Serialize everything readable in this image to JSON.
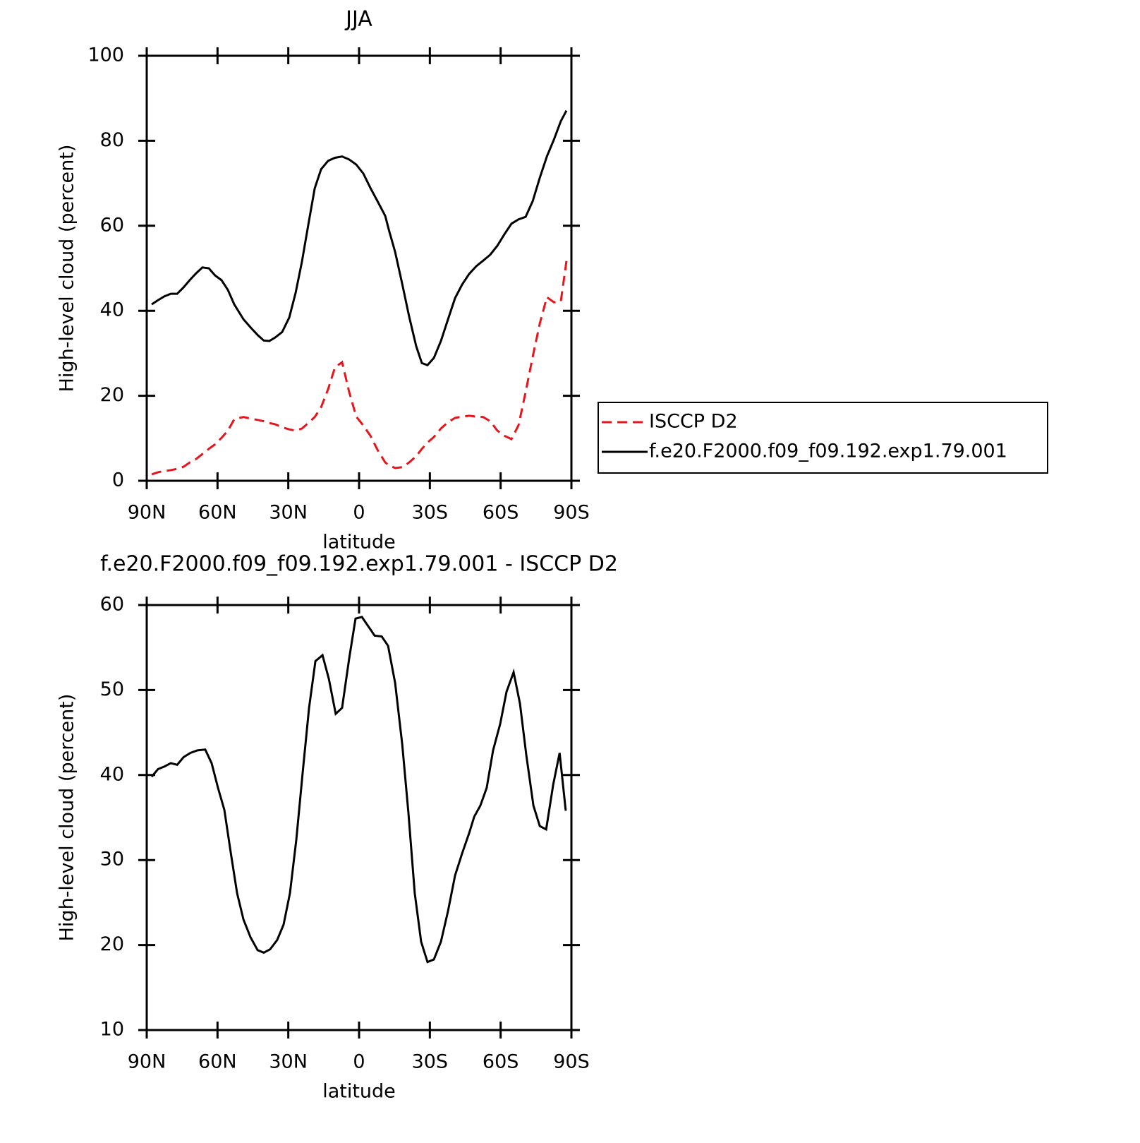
{
  "chart_data": [
    {
      "type": "line",
      "title": "JJA",
      "xlabel": "latitude",
      "ylabel": "High-level cloud (percent)",
      "xlim": [
        90,
        -90
      ],
      "ylim": [
        0,
        100
      ],
      "xticks": [
        {
          "value": 90,
          "label": "90N"
        },
        {
          "value": 60,
          "label": "60N"
        },
        {
          "value": 30,
          "label": "30N"
        },
        0,
        {
          "value": -30,
          "label": "30S"
        },
        {
          "value": -60,
          "label": "60S"
        },
        {
          "value": -90,
          "label": "90S"
        }
      ],
      "yticks": [
        0,
        20,
        40,
        60,
        80,
        100
      ],
      "legend": "outside-right",
      "x": [
        87.9,
        85.2,
        82.5,
        79.8,
        77.1,
        74.4,
        71.8,
        69.1,
        66.4,
        63.7,
        61.0,
        58.3,
        55.6,
        52.9,
        49.0,
        45.7,
        42.8,
        40.4,
        38.0,
        35.6,
        32.6,
        29.6,
        26.9,
        24.2,
        21.5,
        18.8,
        16.1,
        13.1,
        10.2,
        7.2,
        4.2,
        1.2,
        -1.8,
        -4.8,
        -7.8,
        -11.1,
        -12.6,
        -15.3,
        -18.3,
        -21.2,
        -24.2,
        -26.6,
        -29.0,
        -31.7,
        -34.7,
        -37.7,
        -40.7,
        -43.7,
        -46.7,
        -49.7,
        -52.6,
        -55.6,
        -58.6,
        -61.6,
        -64.6,
        -67.6,
        -70.6,
        -73.6,
        -76.6,
        -79.6,
        -82.6,
        -85.5,
        -87.9
      ],
      "series": [
        {
          "name": "ISCCP D2",
          "color": "#e8141c",
          "line_style": "dashed",
          "values": [
            1.5,
            2.0,
            2.3,
            2.5,
            2.8,
            3.3,
            4.3,
            5.1,
            6.3,
            7.5,
            8.6,
            10.1,
            11.8,
            14.5,
            15.0,
            14.6,
            14.3,
            14.0,
            13.6,
            13.3,
            12.6,
            12.1,
            11.8,
            12.3,
            13.6,
            15.0,
            17.3,
            21.6,
            26.7,
            27.9,
            20.9,
            15.1,
            13.0,
            10.6,
            7.3,
            4.3,
            3.7,
            3.0,
            3.2,
            4.3,
            5.8,
            7.5,
            9.0,
            10.3,
            12.3,
            13.8,
            14.8,
            15.1,
            15.3,
            15.1,
            15.0,
            14.0,
            11.8,
            10.6,
            9.8,
            13.1,
            20.9,
            29.2,
            37.0,
            43.2,
            42.0,
            42.2,
            51.7
          ]
        },
        {
          "name": "f.e20.F2000.f09_f09.192.exp1.79.001",
          "color": "#000000",
          "line_style": "solid",
          "values": [
            41.5,
            42.5,
            43.4,
            44.0,
            44.0,
            45.5,
            47.2,
            48.8,
            50.2,
            50.0,
            48.3,
            47.2,
            44.9,
            41.5,
            38.0,
            35.9,
            34.2,
            33.0,
            32.9,
            33.7,
            35.0,
            38.4,
            44.2,
            51.6,
            60.3,
            68.8,
            73.3,
            75.3,
            76.0,
            76.3,
            75.6,
            74.4,
            72.3,
            68.9,
            65.8,
            62.3,
            59.1,
            53.8,
            46.3,
            38.7,
            31.7,
            27.7,
            27.2,
            28.9,
            32.9,
            38.0,
            43.0,
            46.2,
            48.7,
            50.5,
            51.8,
            53.2,
            55.3,
            58.0,
            60.5,
            61.5,
            62.1,
            65.8,
            71.3,
            76.3,
            80.3,
            84.6,
            87.1
          ]
        }
      ]
    },
    {
      "type": "line",
      "title": "f.e20.F2000.f09_f09.192.exp1.79.001 - ISCCP D2",
      "xlabel": "latitude",
      "ylabel": "High-level cloud (percent)",
      "xlim": [
        90,
        -90
      ],
      "ylim": [
        10,
        60
      ],
      "xticks": [
        {
          "value": 90,
          "label": "90N"
        },
        {
          "value": 60,
          "label": "60N"
        },
        {
          "value": 30,
          "label": "30N"
        },
        0,
        {
          "value": -30,
          "label": "30S"
        },
        {
          "value": -60,
          "label": "60S"
        },
        {
          "value": -90,
          "label": "90S"
        }
      ],
      "yticks": [
        10,
        20,
        30,
        40,
        50,
        60
      ],
      "x": [
        87.9,
        85.2,
        82.5,
        79.8,
        77.1,
        74.4,
        71.5,
        68.5,
        65.2,
        62.5,
        59.8,
        57.1,
        54.4,
        51.7,
        49.0,
        46.0,
        43.0,
        40.4,
        37.7,
        34.7,
        32.0,
        29.3,
        26.6,
        23.9,
        21.2,
        18.5,
        15.5,
        12.8,
        9.9,
        7.2,
        4.2,
        1.5,
        -1.2,
        -3.9,
        -6.6,
        -9.6,
        -12.3,
        -15.3,
        -18.3,
        -20.9,
        -23.6,
        -26.3,
        -29.0,
        -31.7,
        -34.7,
        -37.7,
        -40.7,
        -43.7,
        -46.7,
        -48.8,
        -51.4,
        -54.1,
        -56.8,
        -59.8,
        -62.5,
        -65.5,
        -68.2,
        -70.9,
        -73.9,
        -76.6,
        -79.3,
        -82.3,
        -85.0,
        -87.6
      ],
      "series": [
        {
          "color": "#000000",
          "line_style": "solid",
          "values": [
            39.8,
            40.7,
            41.0,
            41.4,
            41.2,
            42.1,
            42.6,
            42.9,
            43.0,
            41.4,
            38.5,
            35.9,
            30.9,
            26.1,
            23.0,
            20.9,
            19.4,
            19.1,
            19.5,
            20.6,
            22.4,
            26.1,
            32.4,
            40.3,
            47.9,
            53.4,
            54.1,
            51.3,
            47.2,
            47.9,
            53.7,
            58.4,
            58.6,
            57.5,
            56.4,
            56.3,
            55.2,
            50.8,
            43.6,
            35.6,
            26.1,
            20.4,
            18.0,
            18.3,
            20.4,
            24.0,
            28.2,
            30.8,
            33.2,
            35.1,
            36.4,
            38.5,
            42.9,
            46.0,
            49.8,
            52.1,
            48.4,
            42.3,
            36.4,
            34.0,
            33.6,
            38.9,
            42.6,
            35.8
          ]
        }
      ]
    }
  ]
}
